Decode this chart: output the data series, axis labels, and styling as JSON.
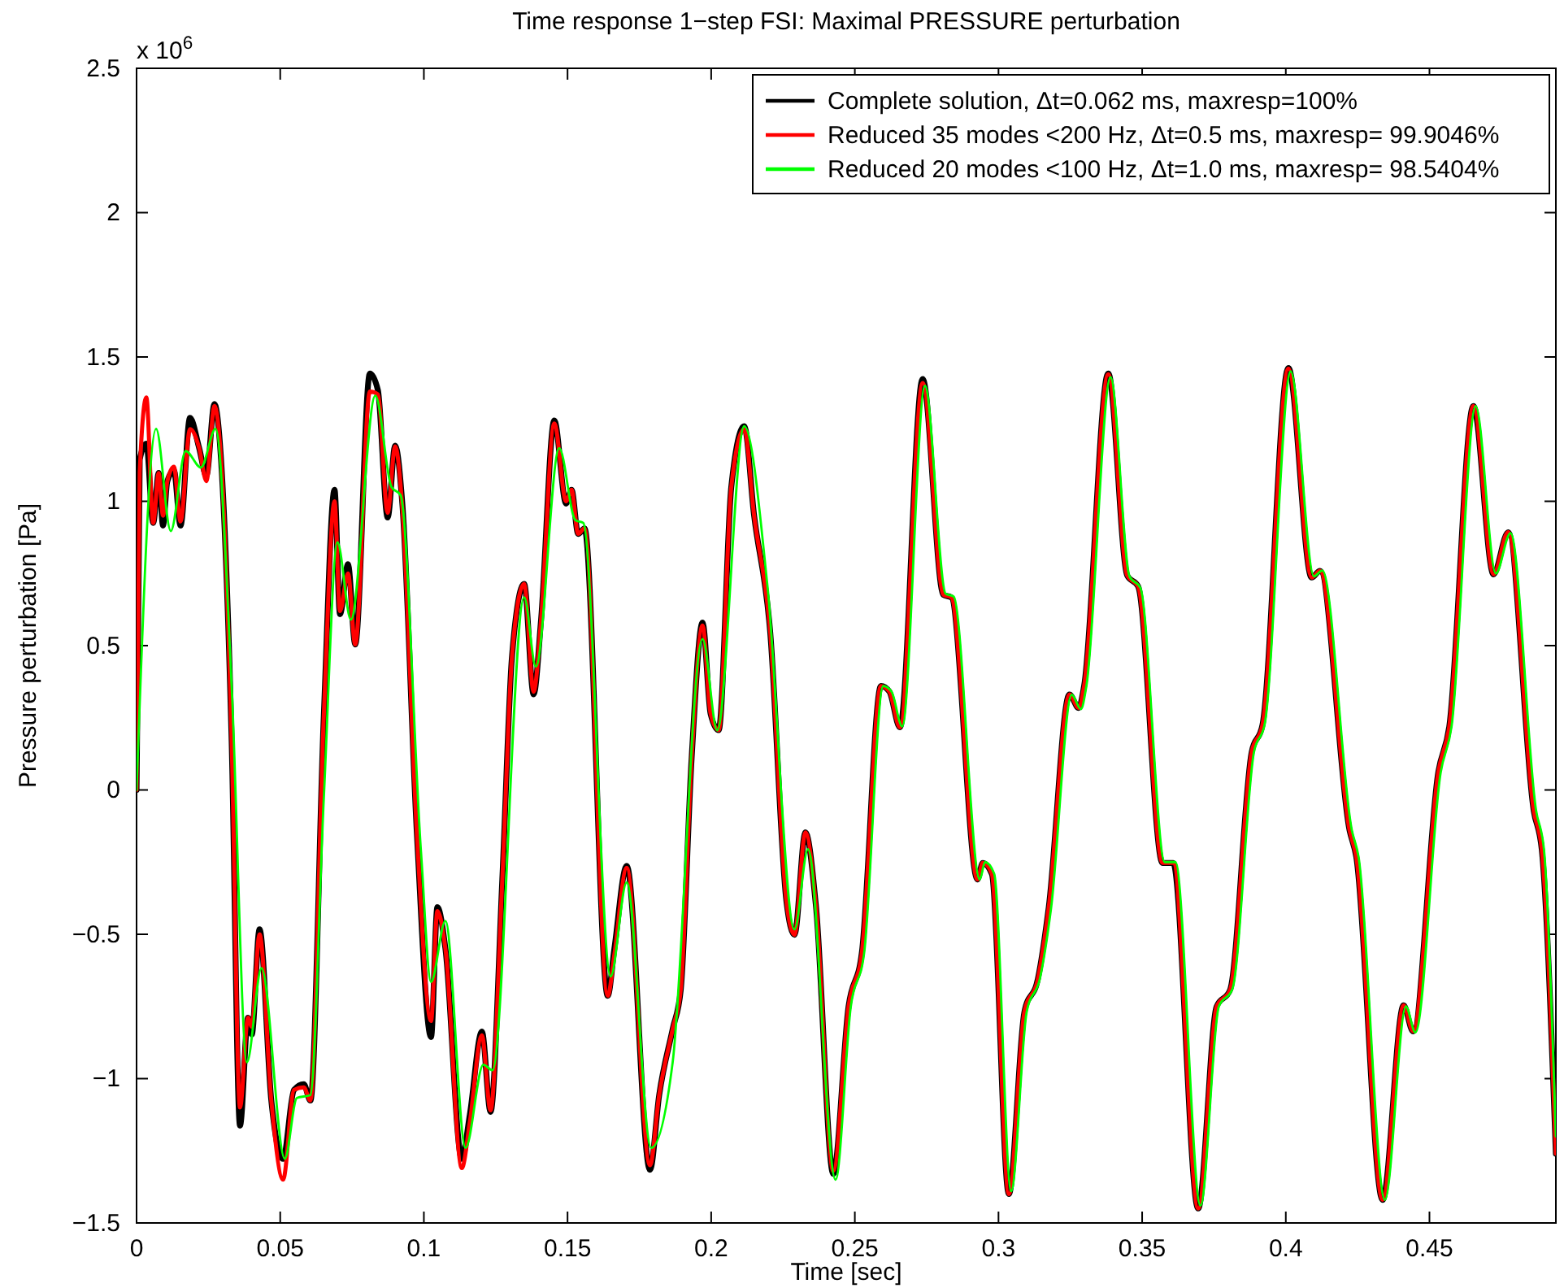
{
  "chart_data": {
    "type": "line",
    "title": "Time response 1−step FSI: Maximal PRESSURE perturbation",
    "xlabel": "Time [sec]",
    "ylabel": "Pressure perturbation [Pa]",
    "annotations": [
      "x 10$^{6}$"
    ],
    "xlim": [
      0,
      0.494
    ],
    "xticks": [
      0,
      0.05,
      0.1,
      0.15,
      0.2,
      0.25,
      0.3,
      0.35,
      0.4,
      0.45
    ],
    "ylim": [
      -1.5,
      2.5
    ],
    "yticks": [
      {
        "value": -1.5,
        "label": "−1.5"
      },
      {
        "value": -1,
        "label": "−1"
      },
      {
        "value": -0.5,
        "label": "−0.5"
      },
      0,
      0.5,
      1,
      1.5,
      2,
      2.5
    ],
    "grid": false,
    "legend": "top right",
    "marker": "none",
    "line_style": "solid",
    "series": [
      {
        "name": "Complete solution, Δt=0.062 ms, maxresp=100%",
        "color": "#000000",
        "x": [
          0,
          0.0011,
          0.0034,
          0.0058,
          0.0077,
          0.0092,
          0.0107,
          0.013,
          0.0153,
          0.0186,
          0.0218,
          0.0243,
          0.0271,
          0.0294,
          0.0331,
          0.036,
          0.0388,
          0.0401,
          0.0428,
          0.0469,
          0.051,
          0.0548,
          0.0582,
          0.0605,
          0.0652,
          0.0689,
          0.0708,
          0.0736,
          0.0761,
          0.0812,
          0.084,
          0.0874,
          0.09,
          0.0925,
          0.0976,
          0.1025,
          0.1047,
          0.1075,
          0.1132,
          0.116,
          0.1202,
          0.1232,
          0.1273,
          0.1307,
          0.1349,
          0.1382,
          0.1408,
          0.1454,
          0.1495,
          0.1514,
          0.1537,
          0.1559,
          0.164,
          0.1663,
          0.1706,
          0.1787,
          0.1819,
          0.1866,
          0.1894,
          0.1932,
          0.197,
          0.1998,
          0.2026,
          0.207,
          0.2115,
          0.2149,
          0.2205,
          0.2262,
          0.229,
          0.2328,
          0.2365,
          0.2425,
          0.2478,
          0.2525,
          0.2591,
          0.262,
          0.2657,
          0.2736,
          0.2808,
          0.2836,
          0.2927,
          0.2945,
          0.2977,
          0.3036,
          0.309,
          0.3137,
          0.3175,
          0.3247,
          0.3279,
          0.3298,
          0.3382,
          0.3448,
          0.3486,
          0.3571,
          0.3608,
          0.3695,
          0.3759,
          0.3806,
          0.3881,
          0.3919,
          0.4009,
          0.409,
          0.4119,
          0.4222,
          0.4245,
          0.4337,
          0.441,
          0.4443,
          0.4531,
          0.4569,
          0.4653,
          0.4723,
          0.4774,
          0.4863,
          0.4891,
          0.494
        ],
        "values": [
          0,
          1.145,
          1.2,
          0.925,
          1.098,
          0.916,
          1.069,
          1.107,
          0.916,
          1.289,
          1.184,
          1.088,
          1.337,
          1.145,
          0.168,
          -1.163,
          -0.789,
          -0.847,
          -0.483,
          -1.076,
          -1.278,
          -1.039,
          -1.019,
          -1.076,
          0.264,
          1.04,
          0.609,
          0.782,
          0.504,
          1.443,
          1.385,
          0.944,
          1.193,
          0.992,
          -0.157,
          -0.856,
          -0.406,
          -0.55,
          -1.278,
          -1.125,
          -0.837,
          -1.115,
          -0.31,
          0.466,
          0.714,
          0.331,
          0.59,
          1.28,
          0.992,
          1.04,
          0.887,
          0.906,
          -0.713,
          -0.55,
          -0.263,
          -1.316,
          -1.057,
          -0.828,
          -0.693,
          0.111,
          0.58,
          0.264,
          0.207,
          1.05,
          1.26,
          0.954,
          0.552,
          -0.387,
          -0.502,
          -0.147,
          -0.406,
          -1.33,
          -0.751,
          -0.559,
          0.36,
          0.341,
          0.217,
          1.424,
          0.676,
          0.667,
          -0.31,
          -0.253,
          -0.291,
          -1.4,
          -0.77,
          -0.655,
          -0.406,
          0.331,
          0.284,
          0.36,
          1.443,
          0.743,
          0.705,
          -0.253,
          -0.253,
          -1.45,
          -0.751,
          -0.693,
          0.13,
          0.226,
          1.462,
          0.736,
          0.759,
          -0.14,
          -0.23,
          -1.42,
          -0.746,
          -0.836,
          0.063,
          0.22,
          1.33,
          0.747,
          0.893,
          -0.072,
          -0.207,
          -1.26
        ]
      },
      {
        "name": "Reduced 35 modes <200 Hz, Δt=0.5 ms, maxresp= 99.9046%",
        "color": "#ff0000",
        "x": [
          0,
          0.0011,
          0.0034,
          0.0058,
          0.0077,
          0.0092,
          0.0107,
          0.013,
          0.0153,
          0.0186,
          0.0218,
          0.0243,
          0.0271,
          0.0294,
          0.0331,
          0.036,
          0.0388,
          0.0401,
          0.0428,
          0.0469,
          0.051,
          0.0548,
          0.0582,
          0.0605,
          0.0652,
          0.0689,
          0.0708,
          0.0736,
          0.0761,
          0.0812,
          0.084,
          0.0874,
          0.09,
          0.0925,
          0.0976,
          0.1025,
          0.1047,
          0.1075,
          0.1132,
          0.116,
          0.1202,
          0.1232,
          0.1273,
          0.1307,
          0.1349,
          0.1382,
          0.1408,
          0.1454,
          0.1495,
          0.1514,
          0.1537,
          0.1559,
          0.164,
          0.1663,
          0.1706,
          0.1787,
          0.1819,
          0.1866,
          0.1894,
          0.1932,
          0.197,
          0.1998,
          0.2026,
          0.207,
          0.2115,
          0.2149,
          0.2205,
          0.2262,
          0.229,
          0.2328,
          0.2365,
          0.2425,
          0.2478,
          0.2525,
          0.2591,
          0.262,
          0.2657,
          0.2736,
          0.2808,
          0.2836,
          0.2927,
          0.2945,
          0.2977,
          0.3036,
          0.309,
          0.3137,
          0.3175,
          0.3247,
          0.3279,
          0.3298,
          0.3382,
          0.3448,
          0.3486,
          0.3571,
          0.3608,
          0.3695,
          0.3759,
          0.3806,
          0.3881,
          0.3919,
          0.4009,
          0.409,
          0.4119,
          0.4222,
          0.4245,
          0.4337,
          0.441,
          0.4443,
          0.4531,
          0.4569,
          0.4653,
          0.4723,
          0.4774,
          0.4863,
          0.4891,
          0.494
        ],
        "values": [
          0,
          1.1,
          1.36,
          0.925,
          1.098,
          0.95,
          1.069,
          1.12,
          0.93,
          1.25,
          1.184,
          1.07,
          1.33,
          1.145,
          0.168,
          -1.1,
          -0.789,
          -0.82,
          -0.5,
          -1.076,
          -1.35,
          -1.039,
          -1.03,
          -1.076,
          0.264,
          1.0,
          0.62,
          0.75,
          0.504,
          1.38,
          1.37,
          0.96,
          1.19,
          0.98,
          -0.157,
          -0.8,
          -0.42,
          -0.55,
          -1.31,
          -1.15,
          -0.85,
          -1.11,
          -0.31,
          0.466,
          0.714,
          0.34,
          0.59,
          1.27,
          1.0,
          1.04,
          0.887,
          0.906,
          -0.713,
          -0.57,
          -0.27,
          -1.3,
          -1.057,
          -0.828,
          -0.693,
          0.111,
          0.57,
          0.264,
          0.207,
          1.05,
          1.25,
          0.954,
          0.552,
          -0.387,
          -0.502,
          -0.147,
          -0.406,
          -1.32,
          -0.751,
          -0.559,
          0.36,
          0.341,
          0.217,
          1.41,
          0.676,
          0.667,
          -0.31,
          -0.253,
          -0.291,
          -1.4,
          -0.77,
          -0.655,
          -0.406,
          0.331,
          0.284,
          0.36,
          1.44,
          0.743,
          0.705,
          -0.253,
          -0.253,
          -1.45,
          -0.751,
          -0.693,
          0.13,
          0.226,
          1.46,
          0.736,
          0.759,
          -0.14,
          -0.23,
          -1.42,
          -0.746,
          -0.836,
          0.063,
          0.22,
          1.33,
          0.747,
          0.893,
          -0.072,
          -0.207,
          -1.26
        ]
      },
      {
        "name": "Reduced 20 modes <100 Hz, Δt=1.0 ms, maxresp= 98.5404%",
        "color": "#00ff00",
        "x": [
          0,
          0.0068,
          0.0119,
          0.0171,
          0.0224,
          0.0275,
          0.0331,
          0.0384,
          0.0435,
          0.0516,
          0.0558,
          0.0605,
          0.0652,
          0.0699,
          0.0746,
          0.0831,
          0.0887,
          0.0919,
          0.099,
          0.1025,
          0.1075,
          0.1145,
          0.1207,
          0.1239,
          0.1349,
          0.139,
          0.1471,
          0.1527,
          0.1555,
          0.165,
          0.1706,
          0.1791,
          0.1866,
          0.197,
          0.2021,
          0.2115,
          0.2196,
          0.229,
          0.2337,
          0.2433,
          0.2486,
          0.2533,
          0.2599,
          0.2628,
          0.2665,
          0.2744,
          0.2816,
          0.2844,
          0.2935,
          0.2953,
          0.2985,
          0.3044,
          0.3098,
          0.3145,
          0.3183,
          0.3255,
          0.3287,
          0.3306,
          0.339,
          0.3456,
          0.3494,
          0.3579,
          0.3616,
          0.3703,
          0.3767,
          0.3814,
          0.3889,
          0.3927,
          0.4017,
          0.4098,
          0.4127,
          0.423,
          0.4253,
          0.4345,
          0.4418,
          0.4451,
          0.4539,
          0.4577,
          0.4661,
          0.4731,
          0.4782,
          0.4871,
          0.4899,
          0.494
        ],
        "values": [
          0,
          1.251,
          0.897,
          1.174,
          1.117,
          1.251,
          0.36,
          -0.943,
          -0.617,
          -1.278,
          -1.067,
          -1.057,
          -0.023,
          0.858,
          0.59,
          1.366,
          1.05,
          1.021,
          -0.214,
          -0.665,
          -0.454,
          -1.24,
          -0.952,
          -0.971,
          0.667,
          0.427,
          1.184,
          0.935,
          0.925,
          -0.646,
          -0.32,
          -1.24,
          -0.943,
          0.523,
          0.207,
          1.26,
          0.705,
          -0.483,
          -0.205,
          -1.35,
          -0.75,
          -0.56,
          0.36,
          0.34,
          0.22,
          1.4,
          0.68,
          0.67,
          -0.31,
          -0.25,
          -0.29,
          -1.39,
          -0.77,
          -0.65,
          -0.41,
          0.33,
          0.28,
          0.36,
          1.43,
          0.74,
          0.7,
          -0.25,
          -0.25,
          -1.44,
          -0.75,
          -0.69,
          0.13,
          0.23,
          1.45,
          0.74,
          0.76,
          -0.14,
          -0.23,
          -1.42,
          -0.75,
          -0.84,
          0.06,
          0.22,
          1.33,
          0.75,
          0.89,
          -0.07,
          -0.21,
          -1.2
        ]
      }
    ]
  }
}
